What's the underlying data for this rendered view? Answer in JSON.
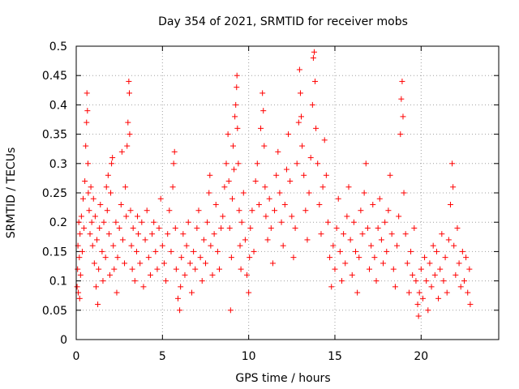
{
  "chart_data": {
    "type": "scatter",
    "title": "Day 354 of 2021, SRMTID for receiver mobs",
    "xlabel": "GPS time / hours",
    "ylabel": "SRMTID / TECUs",
    "xlim": [
      0,
      24.5
    ],
    "ylim": [
      0,
      0.5
    ],
    "xticks": [
      0,
      5,
      10,
      15,
      20
    ],
    "xtick_labels": [
      "0",
      "5",
      "10",
      "15",
      "20"
    ],
    "yticks": [
      0,
      0.05,
      0.1,
      0.15,
      0.2,
      0.25,
      0.3,
      0.35,
      0.4,
      0.45,
      0.5
    ],
    "ytick_labels": [
      "0",
      "0.05",
      "0.1",
      "0.15",
      "0.2",
      "0.25",
      "0.3",
      "0.35",
      "0.4",
      "0.45",
      "0.5"
    ],
    "grid": true,
    "marker": "plus",
    "series": [
      {
        "name": "SRMTID",
        "color": "#ff0000",
        "points": [
          [
            0.05,
            0.09
          ],
          [
            0.08,
            0.12
          ],
          [
            0.1,
            0.16
          ],
          [
            0.12,
            0.08
          ],
          [
            0.15,
            0.2
          ],
          [
            0.18,
            0.14
          ],
          [
            0.2,
            0.07
          ],
          [
            0.22,
            0.18
          ],
          [
            0.25,
            0.11
          ],
          [
            0.3,
            0.21
          ],
          [
            0.35,
            0.15
          ],
          [
            0.4,
            0.24
          ],
          [
            0.45,
            0.19
          ],
          [
            0.5,
            0.27
          ],
          [
            0.55,
            0.33
          ],
          [
            0.6,
            0.37
          ],
          [
            0.62,
            0.42
          ],
          [
            0.65,
            0.39
          ],
          [
            0.68,
            0.3
          ],
          [
            0.7,
            0.25
          ],
          [
            0.75,
            0.22
          ],
          [
            0.8,
            0.18
          ],
          [
            0.85,
            0.26
          ],
          [
            0.9,
            0.2
          ],
          [
            0.95,
            0.16
          ],
          [
            1.0,
            0.24
          ],
          [
            1.05,
            0.13
          ],
          [
            1.1,
            0.21
          ],
          [
            1.15,
            0.09
          ],
          [
            1.2,
            0.17
          ],
          [
            1.25,
            0.06
          ],
          [
            1.3,
            0.12
          ],
          [
            1.35,
            0.19
          ],
          [
            1.4,
            0.23
          ],
          [
            1.5,
            0.15
          ],
          [
            1.55,
            0.1
          ],
          [
            1.6,
            0.2
          ],
          [
            1.7,
            0.14
          ],
          [
            1.75,
            0.26
          ],
          [
            1.8,
            0.22
          ],
          [
            1.85,
            0.28
          ],
          [
            1.9,
            0.18
          ],
          [
            1.95,
            0.11
          ],
          [
            2.0,
            0.25
          ],
          [
            2.05,
            0.3
          ],
          [
            2.1,
            0.31
          ],
          [
            2.15,
            0.16
          ],
          [
            2.2,
            0.12
          ],
          [
            2.3,
            0.2
          ],
          [
            2.35,
            0.08
          ],
          [
            2.4,
            0.14
          ],
          [
            2.5,
            0.19
          ],
          [
            2.6,
            0.23
          ],
          [
            2.65,
            0.32
          ],
          [
            2.7,
            0.17
          ],
          [
            2.8,
            0.13
          ],
          [
            2.85,
            0.26
          ],
          [
            2.9,
            0.21
          ],
          [
            2.95,
            0.33
          ],
          [
            3.0,
            0.37
          ],
          [
            3.05,
            0.44
          ],
          [
            3.08,
            0.42
          ],
          [
            3.1,
            0.35
          ],
          [
            3.15,
            0.22
          ],
          [
            3.2,
            0.16
          ],
          [
            3.25,
            0.12
          ],
          [
            3.3,
            0.19
          ],
          [
            3.4,
            0.1
          ],
          [
            3.5,
            0.15
          ],
          [
            3.55,
            0.21
          ],
          [
            3.6,
            0.18
          ],
          [
            3.7,
            0.13
          ],
          [
            3.8,
            0.2
          ],
          [
            3.9,
            0.09
          ],
          [
            4.0,
            0.17
          ],
          [
            4.1,
            0.22
          ],
          [
            4.2,
            0.14
          ],
          [
            4.3,
            0.11
          ],
          [
            4.4,
            0.18
          ],
          [
            4.5,
            0.2
          ],
          [
            4.6,
            0.15
          ],
          [
            4.7,
            0.12
          ],
          [
            4.8,
            0.19
          ],
          [
            4.9,
            0.24
          ],
          [
            5.0,
            0.16
          ],
          [
            5.1,
            0.13
          ],
          [
            5.2,
            0.1
          ],
          [
            5.3,
            0.18
          ],
          [
            5.4,
            0.22
          ],
          [
            5.5,
            0.15
          ],
          [
            5.6,
            0.26
          ],
          [
            5.65,
            0.3
          ],
          [
            5.7,
            0.32
          ],
          [
            5.75,
            0.19
          ],
          [
            5.8,
            0.12
          ],
          [
            5.9,
            0.07
          ],
          [
            6.0,
            0.05
          ],
          [
            6.05,
            0.09
          ],
          [
            6.1,
            0.14
          ],
          [
            6.2,
            0.18
          ],
          [
            6.3,
            0.11
          ],
          [
            6.4,
            0.16
          ],
          [
            6.5,
            0.2
          ],
          [
            6.6,
            0.13
          ],
          [
            6.7,
            0.08
          ],
          [
            6.8,
            0.15
          ],
          [
            6.9,
            0.12
          ],
          [
            7.0,
            0.19
          ],
          [
            7.1,
            0.22
          ],
          [
            7.2,
            0.14
          ],
          [
            7.3,
            0.1
          ],
          [
            7.4,
            0.17
          ],
          [
            7.5,
            0.13
          ],
          [
            7.6,
            0.2
          ],
          [
            7.7,
            0.25
          ],
          [
            7.75,
            0.28
          ],
          [
            7.8,
            0.16
          ],
          [
            7.9,
            0.11
          ],
          [
            8.0,
            0.18
          ],
          [
            8.1,
            0.23
          ],
          [
            8.2,
            0.15
          ],
          [
            8.3,
            0.12
          ],
          [
            8.4,
            0.19
          ],
          [
            8.5,
            0.21
          ],
          [
            8.6,
            0.26
          ],
          [
            8.7,
            0.3
          ],
          [
            8.8,
            0.35
          ],
          [
            8.85,
            0.27
          ],
          [
            8.9,
            0.19
          ],
          [
            8.95,
            0.05
          ],
          [
            9.0,
            0.14
          ],
          [
            9.05,
            0.24
          ],
          [
            9.1,
            0.33
          ],
          [
            9.15,
            0.29
          ],
          [
            9.2,
            0.38
          ],
          [
            9.25,
            0.4
          ],
          [
            9.3,
            0.43
          ],
          [
            9.32,
            0.45
          ],
          [
            9.35,
            0.36
          ],
          [
            9.4,
            0.3
          ],
          [
            9.45,
            0.22
          ],
          [
            9.5,
            0.16
          ],
          [
            9.55,
            0.12
          ],
          [
            9.6,
            0.2
          ],
          [
            9.7,
            0.25
          ],
          [
            9.8,
            0.17
          ],
          [
            9.9,
            0.11
          ],
          [
            10.0,
            0.08
          ],
          [
            10.05,
            0.14
          ],
          [
            10.1,
            0.19
          ],
          [
            10.2,
            0.22
          ],
          [
            10.3,
            0.15
          ],
          [
            10.4,
            0.27
          ],
          [
            10.5,
            0.3
          ],
          [
            10.6,
            0.23
          ],
          [
            10.7,
            0.36
          ],
          [
            10.8,
            0.42
          ],
          [
            10.85,
            0.39
          ],
          [
            10.9,
            0.33
          ],
          [
            10.95,
            0.26
          ],
          [
            11.0,
            0.21
          ],
          [
            11.1,
            0.17
          ],
          [
            11.2,
            0.24
          ],
          [
            11.3,
            0.19
          ],
          [
            11.4,
            0.13
          ],
          [
            11.5,
            0.22
          ],
          [
            11.6,
            0.28
          ],
          [
            11.7,
            0.32
          ],
          [
            11.8,
            0.25
          ],
          [
            11.9,
            0.2
          ],
          [
            12.0,
            0.16
          ],
          [
            12.1,
            0.23
          ],
          [
            12.2,
            0.29
          ],
          [
            12.3,
            0.35
          ],
          [
            12.4,
            0.27
          ],
          [
            12.5,
            0.21
          ],
          [
            12.6,
            0.14
          ],
          [
            12.7,
            0.19
          ],
          [
            12.8,
            0.3
          ],
          [
            12.9,
            0.37
          ],
          [
            12.95,
            0.46
          ],
          [
            13.0,
            0.42
          ],
          [
            13.05,
            0.38
          ],
          [
            13.1,
            0.33
          ],
          [
            13.2,
            0.28
          ],
          [
            13.3,
            0.22
          ],
          [
            13.4,
            0.17
          ],
          [
            13.5,
            0.25
          ],
          [
            13.6,
            0.31
          ],
          [
            13.7,
            0.4
          ],
          [
            13.75,
            0.48
          ],
          [
            13.8,
            0.49
          ],
          [
            13.85,
            0.44
          ],
          [
            13.9,
            0.36
          ],
          [
            14.0,
            0.3
          ],
          [
            14.1,
            0.23
          ],
          [
            14.2,
            0.18
          ],
          [
            14.3,
            0.26
          ],
          [
            14.4,
            0.34
          ],
          [
            14.5,
            0.28
          ],
          [
            14.6,
            0.2
          ],
          [
            14.7,
            0.14
          ],
          [
            14.8,
            0.09
          ],
          [
            14.9,
            0.16
          ],
          [
            15.0,
            0.12
          ],
          [
            15.1,
            0.19
          ],
          [
            15.2,
            0.24
          ],
          [
            15.3,
            0.15
          ],
          [
            15.4,
            0.1
          ],
          [
            15.5,
            0.18
          ],
          [
            15.6,
            0.13
          ],
          [
            15.7,
            0.21
          ],
          [
            15.8,
            0.26
          ],
          [
            15.9,
            0.17
          ],
          [
            16.0,
            0.11
          ],
          [
            16.1,
            0.2
          ],
          [
            16.2,
            0.15
          ],
          [
            16.3,
            0.08
          ],
          [
            16.4,
            0.14
          ],
          [
            16.5,
            0.22
          ],
          [
            16.6,
            0.18
          ],
          [
            16.7,
            0.25
          ],
          [
            16.8,
            0.3
          ],
          [
            16.9,
            0.19
          ],
          [
            17.0,
            0.12
          ],
          [
            17.1,
            0.16
          ],
          [
            17.2,
            0.23
          ],
          [
            17.3,
            0.14
          ],
          [
            17.4,
            0.1
          ],
          [
            17.5,
            0.19
          ],
          [
            17.6,
            0.24
          ],
          [
            17.7,
            0.17
          ],
          [
            17.8,
            0.13
          ],
          [
            17.9,
            0.2
          ],
          [
            18.0,
            0.15
          ],
          [
            18.1,
            0.22
          ],
          [
            18.2,
            0.28
          ],
          [
            18.3,
            0.18
          ],
          [
            18.4,
            0.12
          ],
          [
            18.5,
            0.09
          ],
          [
            18.6,
            0.16
          ],
          [
            18.7,
            0.21
          ],
          [
            18.8,
            0.35
          ],
          [
            18.85,
            0.41
          ],
          [
            18.9,
            0.44
          ],
          [
            18.95,
            0.38
          ],
          [
            19.0,
            0.25
          ],
          [
            19.1,
            0.18
          ],
          [
            19.2,
            0.13
          ],
          [
            19.3,
            0.08
          ],
          [
            19.4,
            0.15
          ],
          [
            19.5,
            0.11
          ],
          [
            19.6,
            0.19
          ],
          [
            19.7,
            0.1
          ],
          [
            19.8,
            0.06
          ],
          [
            19.85,
            0.04
          ],
          [
            19.9,
            0.08
          ],
          [
            20.0,
            0.12
          ],
          [
            20.1,
            0.07
          ],
          [
            20.2,
            0.14
          ],
          [
            20.3,
            0.1
          ],
          [
            20.4,
            0.05
          ],
          [
            20.5,
            0.13
          ],
          [
            20.6,
            0.09
          ],
          [
            20.7,
            0.16
          ],
          [
            20.8,
            0.11
          ],
          [
            20.9,
            0.15
          ],
          [
            21.0,
            0.07
          ],
          [
            21.1,
            0.12
          ],
          [
            21.2,
            0.18
          ],
          [
            21.3,
            0.1
          ],
          [
            21.4,
            0.14
          ],
          [
            21.5,
            0.08
          ],
          [
            21.6,
            0.17
          ],
          [
            21.7,
            0.23
          ],
          [
            21.8,
            0.3
          ],
          [
            21.85,
            0.26
          ],
          [
            21.9,
            0.16
          ],
          [
            22.0,
            0.11
          ],
          [
            22.1,
            0.19
          ],
          [
            22.2,
            0.13
          ],
          [
            22.3,
            0.09
          ],
          [
            22.4,
            0.15
          ],
          [
            22.5,
            0.1
          ],
          [
            22.6,
            0.14
          ],
          [
            22.7,
            0.08
          ],
          [
            22.8,
            0.12
          ],
          [
            22.85,
            0.06
          ]
        ]
      }
    ]
  }
}
